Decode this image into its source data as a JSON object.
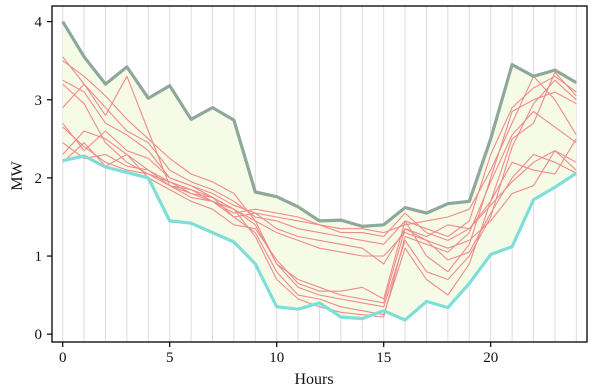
{
  "chart_data": {
    "type": "line",
    "xlabel": "Hours",
    "ylabel": "MW",
    "xlim": [
      -0.5,
      24.5
    ],
    "ylim": [
      -0.1,
      4.2
    ],
    "xticks": [
      0,
      5,
      10,
      15,
      20
    ],
    "yticks": [
      0,
      1,
      2,
      3,
      4
    ],
    "grid": "vertical",
    "colors": {
      "band_fill": "#f5fbe6",
      "upper": "#8fa89c",
      "lower": "#7fded8",
      "scenario": "#ef8b8b",
      "grid": "#dddddd"
    },
    "x": [
      0,
      1,
      2,
      3,
      4,
      5,
      6,
      7,
      8,
      9,
      10,
      11,
      12,
      13,
      14,
      15,
      16,
      17,
      18,
      19,
      20,
      21,
      22,
      23,
      24
    ],
    "upper": [
      4.0,
      3.55,
      3.2,
      3.42,
      3.02,
      3.18,
      2.75,
      2.9,
      2.74,
      1.82,
      1.76,
      1.63,
      1.45,
      1.46,
      1.38,
      1.4,
      1.62,
      1.55,
      1.67,
      1.7,
      2.5,
      3.45,
      3.3,
      3.38,
      3.22
    ],
    "lower": [
      2.22,
      2.28,
      2.14,
      2.07,
      2.0,
      1.45,
      1.42,
      1.3,
      1.18,
      0.9,
      0.35,
      0.32,
      0.4,
      0.22,
      0.2,
      0.3,
      0.18,
      0.42,
      0.34,
      0.65,
      1.02,
      1.12,
      1.72,
      1.88,
      2.06
    ],
    "series": [
      {
        "values": [
          4.0,
          3.55,
          3.2,
          3.42,
          3.02,
          3.18,
          2.75,
          2.9,
          2.74,
          1.82,
          1.76,
          1.63,
          1.45,
          1.46,
          1.38,
          1.4,
          1.62,
          1.55,
          1.67,
          1.7,
          2.5,
          3.45,
          3.3,
          3.38,
          3.22
        ]
      },
      {
        "values": [
          2.22,
          2.28,
          2.14,
          2.07,
          2.0,
          1.45,
          1.42,
          1.3,
          1.18,
          0.9,
          0.35,
          0.32,
          0.4,
          0.22,
          0.2,
          0.3,
          0.18,
          0.42,
          0.34,
          0.65,
          1.02,
          1.12,
          1.72,
          1.88,
          2.06
        ]
      },
      {
        "values": [
          3.55,
          3.2,
          2.9,
          2.6,
          2.45,
          2.1,
          1.95,
          1.85,
          1.7,
          1.5,
          1.45,
          1.35,
          1.3,
          1.25,
          1.2,
          1.15,
          1.45,
          1.35,
          1.25,
          1.45,
          2.3,
          2.9,
          3.15,
          3.3,
          3.1
        ]
      },
      {
        "values": [
          2.3,
          2.6,
          2.5,
          2.3,
          2.1,
          1.95,
          1.8,
          1.7,
          1.6,
          1.4,
          0.9,
          0.7,
          0.6,
          0.5,
          0.45,
          0.4,
          1.35,
          1.2,
          0.95,
          1.05,
          1.55,
          2.0,
          2.3,
          2.2,
          2.06
        ]
      },
      {
        "values": [
          2.9,
          3.2,
          2.8,
          3.3,
          2.6,
          1.9,
          1.75,
          1.7,
          1.5,
          1.3,
          0.8,
          0.5,
          0.45,
          0.35,
          0.3,
          0.25,
          1.1,
          0.7,
          0.5,
          0.9,
          1.7,
          2.5,
          2.7,
          3.35,
          3.05
        ]
      },
      {
        "values": [
          2.2,
          2.45,
          2.15,
          2.3,
          2.0,
          1.85,
          1.7,
          1.6,
          1.4,
          1.35,
          0.95,
          0.65,
          0.55,
          0.55,
          0.6,
          0.45,
          1.45,
          1.0,
          0.8,
          1.15,
          2.0,
          2.85,
          3.0,
          3.1,
          2.95
        ]
      },
      {
        "values": [
          3.25,
          3.1,
          2.7,
          2.55,
          2.35,
          2.0,
          1.9,
          1.75,
          1.6,
          1.25,
          0.7,
          0.45,
          0.35,
          0.28,
          0.25,
          0.22,
          1.25,
          1.15,
          1.05,
          1.3,
          1.95,
          2.55,
          2.85,
          2.65,
          2.45
        ]
      },
      {
        "values": [
          2.65,
          2.4,
          2.2,
          2.1,
          2.05,
          1.95,
          1.85,
          1.75,
          1.5,
          1.55,
          1.5,
          1.45,
          1.4,
          1.35,
          1.35,
          1.3,
          1.4,
          1.45,
          1.5,
          1.6,
          2.1,
          2.7,
          3.3,
          3.0,
          2.55
        ]
      },
      {
        "values": [
          3.5,
          3.3,
          3.05,
          2.75,
          2.5,
          2.25,
          2.05,
          1.95,
          1.8,
          1.45,
          1.3,
          1.2,
          1.1,
          1.05,
          1.0,
          1.0,
          1.3,
          1.2,
          1.1,
          1.2,
          1.45,
          1.8,
          1.9,
          2.35,
          2.1
        ]
      },
      {
        "values": [
          2.7,
          2.35,
          2.6,
          2.35,
          2.25,
          2.0,
          1.9,
          1.8,
          1.65,
          1.55,
          1.35,
          1.25,
          1.2,
          1.15,
          1.1,
          0.9,
          1.35,
          1.25,
          1.4,
          1.35,
          1.7,
          2.2,
          2.1,
          2.05,
          2.5
        ]
      },
      {
        "values": [
          3.2,
          2.95,
          2.45,
          2.2,
          2.05,
          1.9,
          1.8,
          1.75,
          1.6,
          1.45,
          0.9,
          0.6,
          0.5,
          0.45,
          0.4,
          0.35,
          1.2,
          0.8,
          0.7,
          1.0,
          1.5,
          2.4,
          2.95,
          3.25,
          3.0
        ]
      },
      {
        "values": [
          2.45,
          2.25,
          2.3,
          2.15,
          2.1,
          1.9,
          1.85,
          1.7,
          1.55,
          1.6,
          1.55,
          1.5,
          1.4,
          1.3,
          1.3,
          1.25,
          1.55,
          1.3,
          1.2,
          1.35,
          1.65,
          1.95,
          2.2,
          2.35,
          2.2
        ]
      }
    ]
  }
}
